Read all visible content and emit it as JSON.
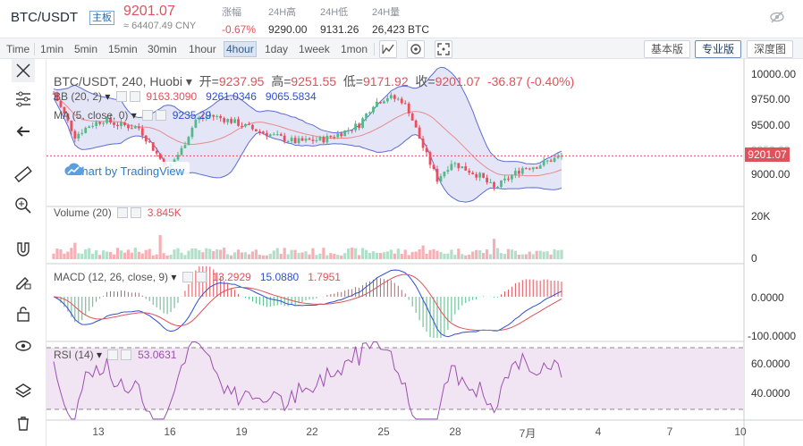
{
  "header": {
    "pair": "BTC/USDT",
    "badge": "主板",
    "price": "9201.07",
    "cny": "≈ 64407.49 CNY",
    "stats": [
      {
        "label": "涨幅",
        "value": "-0.67%"
      },
      {
        "label": "24H高",
        "value": "9290.00"
      },
      {
        "label": "24H低",
        "value": "9131.26"
      },
      {
        "label": "24H量",
        "value": "26,423 BTC"
      }
    ]
  },
  "toolbar": {
    "timeframes": [
      "Time",
      "1min",
      "5min",
      "15min",
      "30min",
      "1hour",
      "4hour",
      "1day",
      "1week",
      "1mon"
    ],
    "active_timeframe": "4hour",
    "icons": [
      "chart-type-icon",
      "indicator-settings-icon",
      "fullscreen-icon"
    ],
    "view_buttons": [
      "基本版",
      "专业版",
      "深度图"
    ],
    "active_view": "专业版"
  },
  "sidebar": {
    "tools": [
      "crosshair-icon",
      "node-editor-icon",
      "arrow-left-icon",
      "ruler-icon",
      "zoom-in-icon",
      "magnet-icon",
      "pencil-lock-icon",
      "unlock-icon",
      "eye-icon",
      "layers-icon",
      "trash-icon"
    ]
  },
  "legend": {
    "title": "BTC/USDT, 240, Huobi",
    "open_label": "开=",
    "open": "9237.95",
    "high_label": "高=",
    "high": "9251.55",
    "low_label": "低=",
    "low": "9171.92",
    "close_label": "收=",
    "close": "9201.07",
    "change": "-36.87 (-0.40%)"
  },
  "indicators": {
    "bb": {
      "name": "BB (20, 2)",
      "values": [
        "9163.3090",
        "9261.0346",
        "9065.5834"
      ]
    },
    "ma": {
      "name": "MA (5, close, 0)",
      "value": "9235.29"
    },
    "volume": {
      "name": "Volume (20)",
      "value": "3.845K"
    },
    "macd": {
      "name": "MACD (12, 26, close, 9)",
      "values": [
        "13.2929",
        "15.0880",
        "1.7951"
      ]
    },
    "rsi": {
      "name": "RSI (14)",
      "value": "53.0631"
    }
  },
  "watermark": "Chart by TradingView",
  "price_axis": {
    "main_ticks": [
      "10000.00",
      "9750.00",
      "9500.00",
      "9250.00",
      "9000.00"
    ],
    "current_price_tag": "9201.07",
    "volume_ticks": [
      "20K",
      "0"
    ],
    "macd_ticks": [
      "0.0000",
      "-100.0000"
    ],
    "rsi_ticks": [
      "60.0000",
      "40.0000"
    ]
  },
  "time_axis": [
    "13",
    "16",
    "19",
    "22",
    "25",
    "28",
    "7月",
    "4",
    "7",
    "10"
  ],
  "colors": {
    "up": "#53b987",
    "down": "#eb4d5c",
    "bb_band": "#5c6bd6",
    "bb_fill": "#d8dcf3",
    "ma": "#e88a8a",
    "macd": "#2f4fd1",
    "signal": "#e0525b",
    "rsi": "#9c4fb0",
    "rsi_bg": "#f1e5f3"
  },
  "chart_data": {
    "type": "candlestick",
    "candle_count": 144,
    "price_range": [
      8850,
      10020
    ],
    "start_price": 9750,
    "path": [
      [
        0,
        9750
      ],
      [
        6,
        9380
      ],
      [
        10,
        9470
      ],
      [
        14,
        9520
      ],
      [
        18,
        9480
      ],
      [
        24,
        9450
      ],
      [
        32,
        9090
      ],
      [
        36,
        9260
      ],
      [
        40,
        9520
      ],
      [
        44,
        9560
      ],
      [
        50,
        9510
      ],
      [
        56,
        9440
      ],
      [
        62,
        9380
      ],
      [
        68,
        9330
      ],
      [
        76,
        9350
      ],
      [
        82,
        9420
      ],
      [
        86,
        9480
      ],
      [
        90,
        9660
      ],
      [
        94,
        9720
      ],
      [
        98,
        9690
      ],
      [
        100,
        9600
      ],
      [
        104,
        9280
      ],
      [
        108,
        9000
      ],
      [
        112,
        9150
      ],
      [
        116,
        9090
      ],
      [
        120,
        9030
      ],
      [
        124,
        8920
      ],
      [
        128,
        9010
      ],
      [
        132,
        9100
      ],
      [
        136,
        9120
      ],
      [
        140,
        9170
      ],
      [
        143,
        9201
      ]
    ],
    "rsi_start": 67,
    "rsi_end": 53.06
  }
}
